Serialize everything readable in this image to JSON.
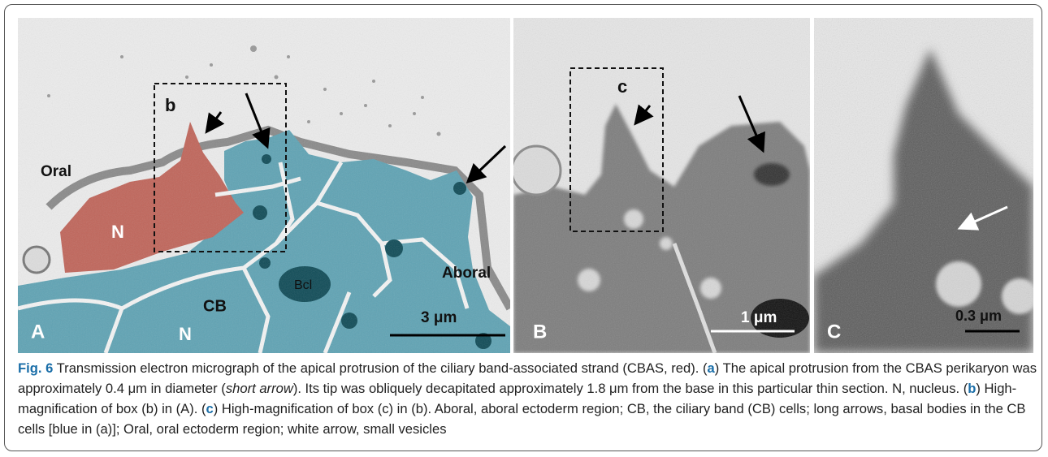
{
  "panels": [
    {
      "letter": "A",
      "labels": [
        "Oral",
        "N",
        "b",
        "CB",
        "N",
        "Bcl",
        "Aboral"
      ],
      "scale_bar": "3 μm"
    },
    {
      "letter": "B",
      "labels": [
        "c"
      ],
      "scale_bar": "1 μm"
    },
    {
      "letter": "C",
      "scale_bar": "0.3 μm"
    }
  ],
  "caption": {
    "label": "Fig. 6",
    "segments": [
      " Transmission electron micrograph of the apical protrusion of the ciliary band-associated strand (CBAS, red). (",
      "a",
      ") The apical protrusion from the CBAS perikaryon was approximately 0.4 μm in diameter (",
      "short arrow",
      "). Its tip was obliquely decapitated approximately 1.8 μm from the base in this particular thin section. N, nucleus. (",
      "b",
      ") High-magnification of box (b) in (A). (",
      "c",
      ") High-magnification of box (c) in (b). Aboral, aboral ectoderm region; CB, the ciliary band (CB) cells; long arrows, basal bodies in the CB cells [blue in (a)]; Oral, oral ectoderm region; white arrow, small vesicles"
    ]
  }
}
